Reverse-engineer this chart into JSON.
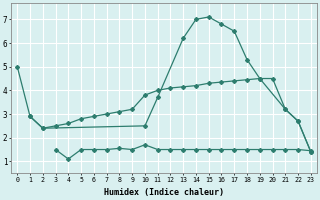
{
  "line1_x": [
    0,
    1,
    2,
    10,
    11,
    13,
    14,
    15,
    16,
    17,
    18,
    19,
    21,
    22,
    23
  ],
  "line1_y": [
    5.0,
    2.9,
    2.4,
    2.5,
    3.7,
    6.2,
    7.0,
    7.1,
    6.8,
    6.5,
    5.3,
    4.5,
    3.2,
    2.7,
    1.4
  ],
  "line2_x": [
    1,
    2,
    3,
    4,
    5,
    6,
    7,
    8,
    9,
    10,
    11,
    12,
    13,
    14,
    15,
    16,
    17,
    18,
    19,
    20,
    21,
    22,
    23
  ],
  "line2_y": [
    2.9,
    2.4,
    2.5,
    2.6,
    2.8,
    2.9,
    3.0,
    3.1,
    3.2,
    3.8,
    4.0,
    4.1,
    4.15,
    4.2,
    4.3,
    4.35,
    4.4,
    4.45,
    4.5,
    4.5,
    3.2,
    2.7,
    1.4
  ],
  "line3_x": [
    3,
    4,
    5,
    6,
    7,
    8,
    9,
    10,
    11,
    12,
    13,
    14,
    15,
    16,
    17,
    18,
    19,
    20,
    21,
    22,
    23
  ],
  "line3_y": [
    1.5,
    1.1,
    1.5,
    1.5,
    1.5,
    1.55,
    1.5,
    1.7,
    1.5,
    1.5,
    1.5,
    1.5,
    1.5,
    1.5,
    1.5,
    1.5,
    1.5,
    1.5,
    1.5,
    1.5,
    1.45
  ],
  "color": "#2d7d6e",
  "bg_color": "#d9f0f0",
  "grid_color": "#ffffff",
  "xlabel": "Humidex (Indice chaleur)",
  "xlim": [
    -0.5,
    23.5
  ],
  "ylim": [
    0.5,
    7.7
  ],
  "xticks": [
    0,
    1,
    2,
    3,
    4,
    5,
    6,
    7,
    8,
    9,
    10,
    11,
    12,
    13,
    14,
    15,
    16,
    17,
    18,
    19,
    20,
    21,
    22,
    23
  ],
  "yticks": [
    1,
    2,
    3,
    4,
    5,
    6,
    7
  ]
}
